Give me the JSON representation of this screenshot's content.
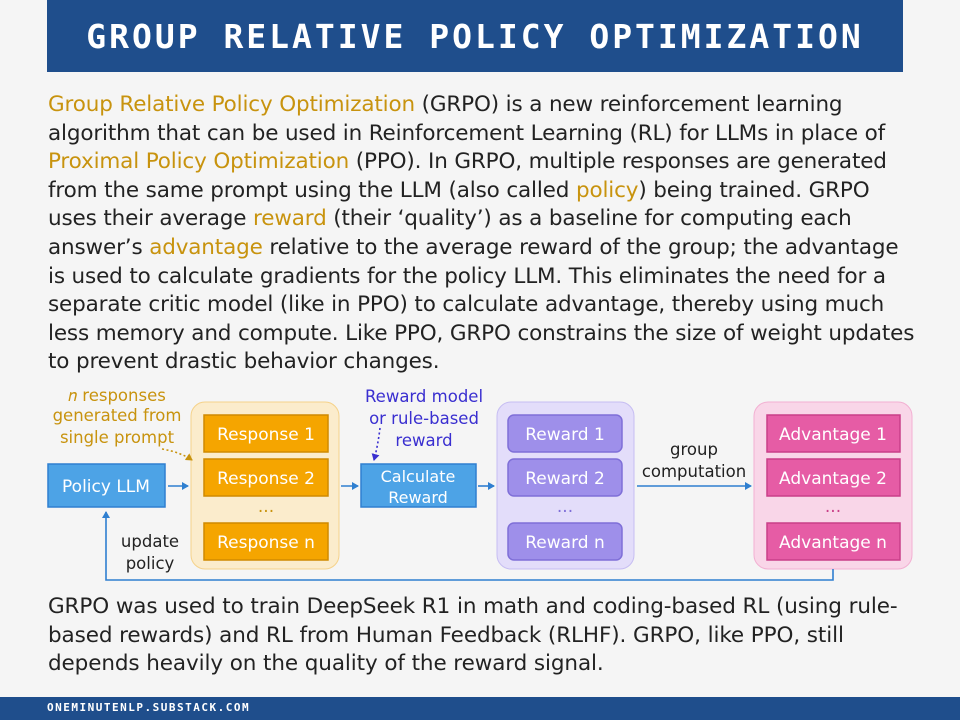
{
  "title": "GROUP RELATIVE POLICY OPTIMIZATION",
  "intro": [
    {
      "t": "Group Relative Policy Optimization",
      "hl": true
    },
    {
      "t": " (GRPO) is a new reinforcement learning algorithm that can be used in Reinforcement Learning (RL) for LLMs in place of "
    },
    {
      "t": "Proximal Policy Optimization",
      "hl": true
    },
    {
      "t": " (PPO). In GRPO, multiple responses are generated from the same prompt using the LLM (also called "
    },
    {
      "t": "policy",
      "hl": true
    },
    {
      "t": ") being trained. GRPO uses their average "
    },
    {
      "t": "reward",
      "hl": true
    },
    {
      "t": " (their ‘quality’) as a baseline for computing each answer’s "
    },
    {
      "t": "advantage",
      "hl": true
    },
    {
      "t": " relative to the average reward of the group; the advantage is used to calculate gradients for the policy LLM. This eliminates the need for a separate critic model (like in PPO) to calculate advantage, thereby using much less memory and compute. Like PPO, GRPO constrains the size of weight updates to prevent drastic behavior changes."
    }
  ],
  "diagram": {
    "policy_label": "Policy LLM",
    "responses_note": [
      "𝑛 responses",
      "generated from",
      "single prompt"
    ],
    "responses": [
      "Response 1",
      "Response 2",
      "Response n"
    ],
    "ellipsis": "...",
    "reward_note": [
      "Reward model",
      "or rule-based",
      "reward"
    ],
    "calc_reward": [
      "Calculate",
      "Reward"
    ],
    "rewards": [
      "Reward 1",
      "Reward 2",
      "Reward n"
    ],
    "group_note": [
      "group",
      "computation"
    ],
    "advantages": [
      "Advantage 1",
      "Advantage 2",
      "Advantage n"
    ],
    "update_note": [
      "update",
      "policy"
    ],
    "colors": {
      "policy_fill": "#4da3e6",
      "response_fill": "#f5a500",
      "response_group_bg": "#fbeccc",
      "reward_fill": "#9e8fea",
      "reward_group_bg": "#e3ddfa",
      "advantage_fill": "#e65ca5",
      "advantage_group_bg": "#f9d6e8",
      "arrow": "#2f7fd0",
      "note_orange": "#c8930e",
      "note_blue": "#3a2fd0"
    }
  },
  "outro": "GRPO was used to train DeepSeek R1 in math and coding-based RL (using rule-based rewards) and RL from Human Feedback (RLHF). GRPO, like PPO, still depends heavily on the quality of the reward signal.",
  "footer": "ONEMINUTENLP.SUBSTACK.COM"
}
